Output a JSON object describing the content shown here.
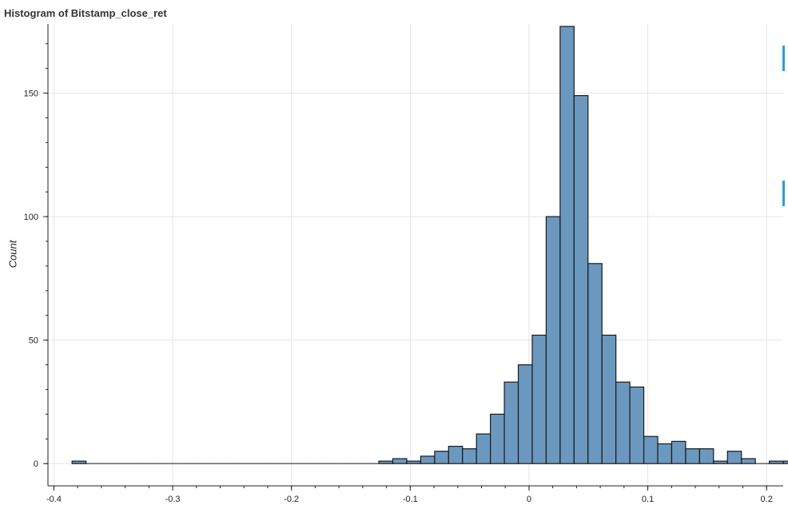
{
  "chart_data": {
    "type": "bar",
    "title": "Histogram of Bitstamp_close_ret",
    "xlabel": "",
    "ylabel": "Count",
    "xlim": [
      -0.405,
      0.214
    ],
    "ylim": [
      -9,
      178
    ],
    "grid": true,
    "legend": "none",
    "x_ticks": [
      -0.4,
      -0.3,
      -0.2,
      -0.1,
      0,
      0.1,
      0.2
    ],
    "x_tick_labels": [
      "-0.4",
      "-0.3",
      "-0.2",
      "-0.1",
      "0",
      "0.1",
      "0.2"
    ],
    "y_ticks": [
      0,
      50,
      100,
      150
    ],
    "y_tick_labels": [
      "0",
      "50",
      "100",
      "150"
    ],
    "bin_start": -0.3847,
    "bin_width": 0.01174,
    "bin_counts": [
      1,
      0,
      0,
      0,
      0,
      0,
      0,
      0,
      0,
      0,
      0,
      0,
      0,
      0,
      0,
      0,
      0,
      0,
      0,
      0,
      0,
      0,
      1,
      2,
      1,
      3,
      5,
      7,
      6,
      12,
      20,
      33,
      40,
      52,
      100,
      177,
      149,
      81,
      52,
      33,
      31,
      11,
      8,
      9,
      6,
      6,
      1,
      5,
      2,
      0,
      1,
      1
    ],
    "bar_fill": "#6b98bf",
    "bar_stroke": "#1a1a1a"
  }
}
